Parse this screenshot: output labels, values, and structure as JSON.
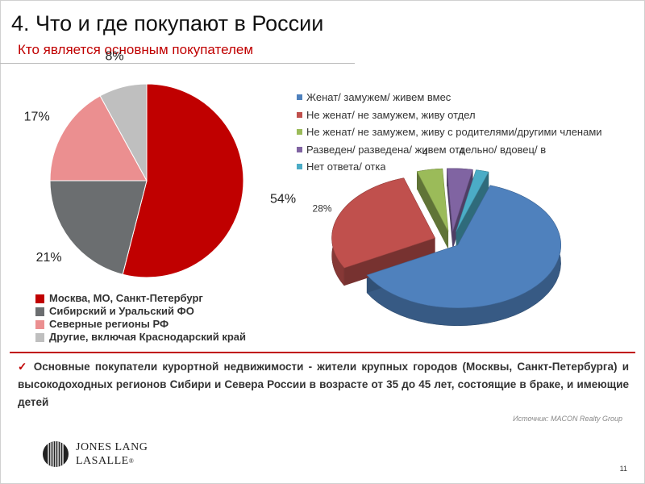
{
  "title": "4. Что и где покупают в России",
  "subtitle": "Кто является основным покупателем",
  "chart_data": [
    {
      "type": "pie",
      "categories": [
        "Москва, МО, Санкт-Петербург",
        "Сибирский и Уральский ФО",
        "Северные регионы РФ",
        "Другие, включая Краснодарский край"
      ],
      "values": [
        54,
        21,
        17,
        8
      ],
      "labels": [
        "54%",
        "21%",
        "17%",
        "8%"
      ],
      "colors": [
        "#c00000",
        "#6b6e70",
        "#eb8f90",
        "#bfbfbf"
      ]
    },
    {
      "type": "pie",
      "categories": [
        "Женат/ замужем/ живем вмес",
        "Не женат/ не замужем, живу отдел",
        "Не женат/ не замужем, живу с родителями/другими членами",
        "Разведен/ разведена/ живем отдельно/ вдовец/ в",
        "Нет ответа/ отка"
      ],
      "values": [
        62,
        28,
        4,
        4,
        2
      ],
      "labels": [
        "",
        "28%",
        "4",
        "4",
        ""
      ],
      "colors": [
        "#4f81bd",
        "#c0504d",
        "#9bbb59",
        "#8064a2",
        "#4bacc6"
      ]
    }
  ],
  "bullet_text": "Основные покупатели курортной недвижимости - жители крупных городов (Москвы, Санкт-Петербурга) и высокодоходных регионов Сибири и Севера России в возрасте от 35 до 45 лет, состоящие в браке, и имеющие детей",
  "source": "Источник: MACON Realty Group",
  "logo": {
    "line1": "JONES LANG",
    "line2": "LASALLE",
    "mark": "®"
  },
  "page_number": "11"
}
